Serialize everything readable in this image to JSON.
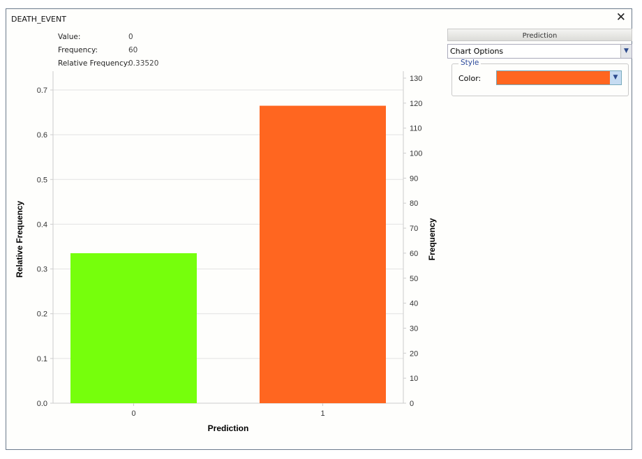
{
  "window": {
    "title": "DEATH_EVENT",
    "close_icon": "close-icon"
  },
  "info": {
    "value_label": "Value:",
    "value": "0",
    "frequency_label": "Frequency:",
    "frequency": "60",
    "rel_label": "Relative Frequency:",
    "rel": "0.33520"
  },
  "panel": {
    "header": "Prediction",
    "dropdown": "Chart Options",
    "style_legend": "Style",
    "color_label": "Color:",
    "color_value": "#FF6620"
  },
  "chart_data": {
    "type": "bar",
    "categories": [
      "0",
      "1"
    ],
    "values": [
      0.3352,
      0.6648
    ],
    "frequencies": [
      60,
      119
    ],
    "colors": [
      "#76FF0C",
      "#FF6620"
    ],
    "xlabel": "Prediction",
    "ylabel": "Relative Frequency",
    "y2label": "Frequency",
    "ylim": [
      0,
      0.7265
    ],
    "y2lim": [
      0,
      130
    ],
    "yticks": [
      "0.0",
      "0.1",
      "0.2",
      "0.3",
      "0.4",
      "0.5",
      "0.6",
      "0.7"
    ],
    "y2ticks": [
      "0",
      "10",
      "20",
      "30",
      "40",
      "50",
      "60",
      "70",
      "80",
      "90",
      "100",
      "110",
      "120",
      "130"
    ],
    "grid": true
  }
}
